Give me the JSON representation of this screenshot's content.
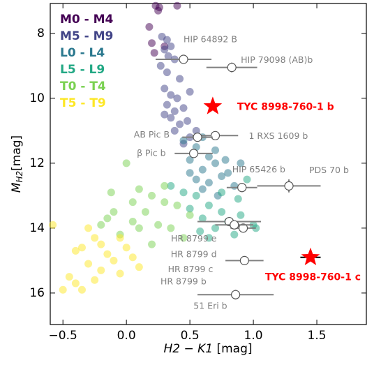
{
  "chart_data": {
    "type": "scatter",
    "xlabel": {
      "symbol": "H2 − K1",
      "unit": "[mag]"
    },
    "ylabel": {
      "symbol": "M",
      "subscript": "H2",
      "unit": "[mag]"
    },
    "xlim": [
      -0.6,
      1.89
    ],
    "ylim": [
      7.08,
      16.97
    ],
    "y_inverted": true,
    "xticks": [
      {
        "value": -0.5,
        "label": "−0.5"
      },
      {
        "value": 0,
        "label": "0.0"
      },
      {
        "value": 0.5,
        "label": "0.5"
      },
      {
        "value": 1,
        "label": "1.0"
      },
      {
        "value": 1.5,
        "label": "1.5"
      }
    ],
    "yticks": [
      8,
      10,
      12,
      14,
      16
    ],
    "legend_position": "upper left",
    "series": [
      {
        "name": "M0 - M4",
        "color": "#440154",
        "x": [
          0.23,
          0.26,
          0.4,
          0.25,
          0.2,
          0.18,
          0.22,
          0.3
        ],
        "y": [
          7.15,
          7.2,
          7.15,
          7.3,
          8.3,
          7.8,
          8.6,
          8.4
        ]
      },
      {
        "name": "M5 - M9",
        "color": "#414487",
        "x": [
          0.28,
          0.32,
          0.3,
          0.33,
          0.38,
          0.35,
          0.27,
          0.32,
          0.42,
          0.3,
          0.35,
          0.4,
          0.32,
          0.38,
          0.45,
          0.35,
          0.42,
          0.48,
          0.38,
          0.5,
          0.45,
          0.55,
          0.3,
          0.5
        ],
        "y": [
          8.1,
          8.2,
          8.5,
          8.7,
          8.8,
          8.4,
          9.0,
          9.2,
          9.4,
          9.7,
          9.9,
          10.0,
          10.2,
          10.4,
          10.3,
          10.6,
          10.8,
          10.7,
          11.0,
          11.2,
          11.4,
          11.0,
          10.5,
          9.8
        ]
      },
      {
        "name": "L0 - L4",
        "color": "#2a788e",
        "x": [
          0.45,
          0.55,
          0.6,
          0.65,
          0.5,
          0.7,
          0.6,
          0.75,
          0.55,
          0.65,
          0.8,
          0.7,
          0.85,
          0.6,
          0.72,
          0.5,
          0.9,
          0.78
        ],
        "y": [
          11.3,
          11.5,
          11.2,
          11.8,
          11.9,
          12.0,
          12.2,
          12.4,
          12.5,
          12.6,
          12.3,
          11.6,
          12.7,
          12.8,
          13.0,
          12.3,
          12.0,
          11.9
        ]
      },
      {
        "name": "L5 - L9",
        "color": "#22a884",
        "x": [
          0.55,
          0.65,
          0.75,
          0.5,
          0.8,
          0.6,
          0.7,
          0.85,
          0.9,
          1.0,
          0.95,
          0.45,
          0.65,
          0.75,
          1.02,
          0.88,
          0.35,
          0.58
        ],
        "y": [
          13.0,
          13.3,
          13.5,
          13.4,
          13.8,
          13.7,
          14.0,
          14.2,
          13.6,
          13.9,
          12.5,
          12.9,
          14.3,
          12.9,
          14.0,
          13.1,
          12.7,
          14.1
        ]
      },
      {
        "name": "T0 - T4",
        "color": "#7ad151",
        "x": [
          0.0,
          0.1,
          0.2,
          0.3,
          0.4,
          0.15,
          -0.1,
          -0.15,
          0.05,
          0.25,
          0.35,
          0.5,
          -0.05,
          0.1,
          0.45,
          -0.2,
          0.2,
          0.3,
          -0.12,
          0.05
        ],
        "y": [
          12.0,
          12.8,
          13.0,
          12.7,
          13.3,
          13.5,
          13.5,
          13.7,
          13.8,
          13.9,
          14.0,
          13.6,
          14.2,
          14.0,
          14.3,
          13.9,
          14.5,
          13.2,
          12.9,
          13.2
        ]
      },
      {
        "name": "T5 - T9",
        "color": "#fde725",
        "x": [
          -0.3,
          -0.25,
          -0.2,
          -0.35,
          -0.15,
          -0.05,
          0.0,
          -0.1,
          0.05,
          -0.3,
          -0.4,
          -0.2,
          0.1,
          -0.45,
          -0.4,
          -0.5,
          -0.35,
          -0.25,
          -0.05,
          -0.58
        ],
        "y": [
          14.0,
          14.3,
          14.5,
          14.6,
          14.8,
          14.3,
          14.6,
          15.0,
          14.9,
          15.1,
          14.7,
          15.3,
          15.2,
          15.5,
          15.7,
          15.9,
          15.9,
          15.6,
          15.4,
          13.9
        ]
      }
    ],
    "companions": [
      {
        "label": "HIP 64892 B",
        "x": 0.45,
        "y": 8.8,
        "xerr": 0.22,
        "yerr": 0.1
      },
      {
        "label": "HIP 79098 (AB)b",
        "x": 0.83,
        "y": 9.05,
        "xerr": 0.2,
        "yerr": 0.15
      },
      {
        "label": "1 RXS 1609 b",
        "x": 0.7,
        "y": 11.15,
        "xerr": 0.18,
        "yerr": 0.1
      },
      {
        "label": "AB Pic B",
        "x": 0.56,
        "y": 11.2,
        "xerr": 0.12,
        "yerr": 0.1
      },
      {
        "label": "β Pic b",
        "x": 0.53,
        "y": 11.7,
        "xerr": 0.15,
        "yerr": 0.1
      },
      {
        "label": "HIP 65426 b",
        "x": 0.91,
        "y": 12.75,
        "xerr": 0.12,
        "yerr": 0.1
      },
      {
        "label": "PDS 70 b",
        "x": 1.28,
        "y": 12.7,
        "xerr": 0.25,
        "yerr": 0.2
      },
      {
        "label": "HR 8799 e",
        "x": 0.81,
        "y": 13.8,
        "xerr": 0.25,
        "yerr": 0.1
      },
      {
        "label": "HR 8799 d",
        "x": 0.92,
        "y": 14.0,
        "xerr": 0.1,
        "yerr": 0.1
      },
      {
        "label": "HR 8799 c",
        "x": 0.93,
        "y": 15.0,
        "xerr": 0.15,
        "yerr": 0.1
      },
      {
        "label": "HR 8799 b",
        "x": 0.85,
        "y": 13.9,
        "xerr": 0.15,
        "yerr": 0.1
      },
      {
        "label": "51 Eri b",
        "x": 0.86,
        "y": 16.05,
        "xerr": 0.3,
        "yerr": 0.15
      }
    ],
    "targets": [
      {
        "label": "TYC 8998-760-1 b",
        "x": 0.68,
        "y": 10.25,
        "color": "#ff0000"
      },
      {
        "label": "TYC 8998-760-1 c",
        "x": 1.45,
        "y": 14.9,
        "xerr": 0.08,
        "color": "#ff0000"
      }
    ]
  }
}
